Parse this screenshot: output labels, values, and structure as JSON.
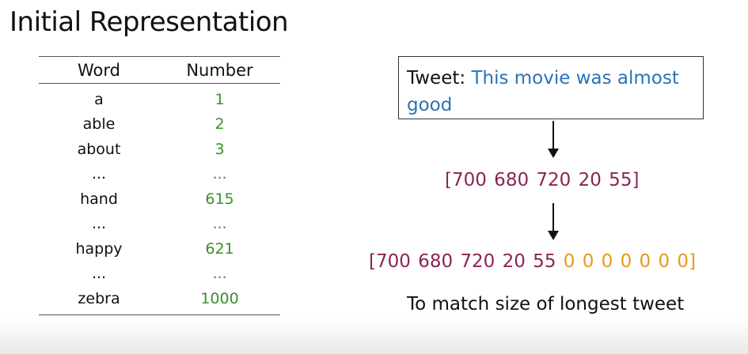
{
  "title": "Initial Representation",
  "table": {
    "headers": {
      "word": "Word",
      "number": "Number"
    },
    "rows": [
      {
        "word": "a",
        "number": "1"
      },
      {
        "word": "able",
        "number": "2"
      },
      {
        "word": "about",
        "number": "3"
      },
      {
        "word": "...",
        "number": "..."
      },
      {
        "word": "hand",
        "number": "615"
      },
      {
        "word": "...",
        "number": "..."
      },
      {
        "word": "happy",
        "number": "621"
      },
      {
        "word": "...",
        "number": "..."
      },
      {
        "word": "zebra",
        "number": "1000"
      }
    ]
  },
  "tweet": {
    "label": "Tweet:",
    "text": "This movie was almost good"
  },
  "sequence": "[700 680 720 20 55]",
  "padded": {
    "values": "[700 680 720 20 55",
    "padding": "0 0 0 0 0 0 0",
    "close": "]"
  },
  "caption": "To match size of longest tweet",
  "colors": {
    "number": "#3a8f2a",
    "tweet_text": "#2a73b3",
    "sequence": "#8a2555",
    "padding": "#e69a1c"
  }
}
